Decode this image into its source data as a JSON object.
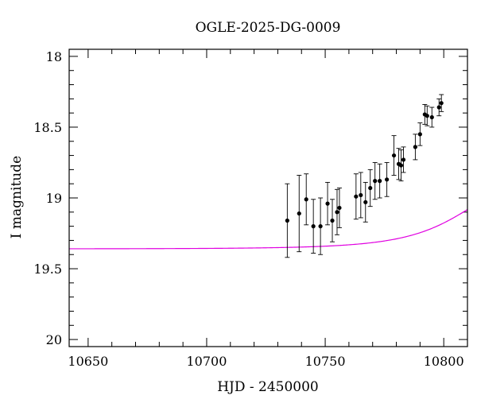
{
  "chart_data": {
    "type": "scatter",
    "title": "OGLE-2025-DG-0009",
    "xlabel": "HJD - 2450000",
    "ylabel": "I magnitude",
    "xlim": [
      10642,
      10810
    ],
    "ylim": [
      20.05,
      17.95
    ],
    "y_inverted": true,
    "grid": false,
    "x_major_ticks": [
      10650,
      10700,
      10750,
      10800
    ],
    "x_minor_step": 10,
    "y_major_ticks": [
      18,
      18.5,
      19,
      19.5,
      20
    ],
    "y_minor_step": 0.1,
    "x_tick_labels": [
      "10650",
      "10700",
      "10750",
      "10800"
    ],
    "y_tick_labels": [
      "18",
      "18.5",
      "19",
      "19.5",
      "20"
    ],
    "colors": {
      "model": "#e000e0",
      "points": "#000000",
      "axes": "#000000"
    },
    "series": [
      {
        "type": "scatter-errorbar",
        "points": [
          {
            "x": 10734,
            "y": 19.16,
            "err": 0.26
          },
          {
            "x": 10739,
            "y": 19.11,
            "err": 0.27
          },
          {
            "x": 10742,
            "y": 19.01,
            "err": 0.18
          },
          {
            "x": 10745,
            "y": 19.2,
            "err": 0.19
          },
          {
            "x": 10748,
            "y": 19.2,
            "err": 0.2
          },
          {
            "x": 10751,
            "y": 19.04,
            "err": 0.15
          },
          {
            "x": 10753,
            "y": 19.16,
            "err": 0.15
          },
          {
            "x": 10755,
            "y": 19.1,
            "err": 0.16
          },
          {
            "x": 10756,
            "y": 19.07,
            "err": 0.14
          },
          {
            "x": 10763,
            "y": 18.99,
            "err": 0.16
          },
          {
            "x": 10765,
            "y": 18.98,
            "err": 0.16
          },
          {
            "x": 10767,
            "y": 19.03,
            "err": 0.14
          },
          {
            "x": 10769,
            "y": 18.93,
            "err": 0.13
          },
          {
            "x": 10771,
            "y": 18.88,
            "err": 0.13
          },
          {
            "x": 10773,
            "y": 18.88,
            "err": 0.12
          },
          {
            "x": 10776,
            "y": 18.87,
            "err": 0.12
          },
          {
            "x": 10779,
            "y": 18.7,
            "err": 0.14
          },
          {
            "x": 10781,
            "y": 18.76,
            "err": 0.11
          },
          {
            "x": 10782,
            "y": 18.77,
            "err": 0.11
          },
          {
            "x": 10783,
            "y": 18.73,
            "err": 0.09
          },
          {
            "x": 10788,
            "y": 18.64,
            "err": 0.09
          },
          {
            "x": 10790,
            "y": 18.55,
            "err": 0.08
          },
          {
            "x": 10792,
            "y": 18.41,
            "err": 0.07
          },
          {
            "x": 10793,
            "y": 18.42,
            "err": 0.07
          },
          {
            "x": 10795,
            "y": 18.43,
            "err": 0.07
          },
          {
            "x": 10798,
            "y": 18.36,
            "err": 0.06
          },
          {
            "x": 10799,
            "y": 18.33,
            "err": 0.06
          }
        ]
      },
      {
        "type": "line",
        "model": {
          "baseline_mag": 19.36,
          "t0": 10826,
          "tE": 27,
          "u0": 0.9
        }
      }
    ]
  }
}
